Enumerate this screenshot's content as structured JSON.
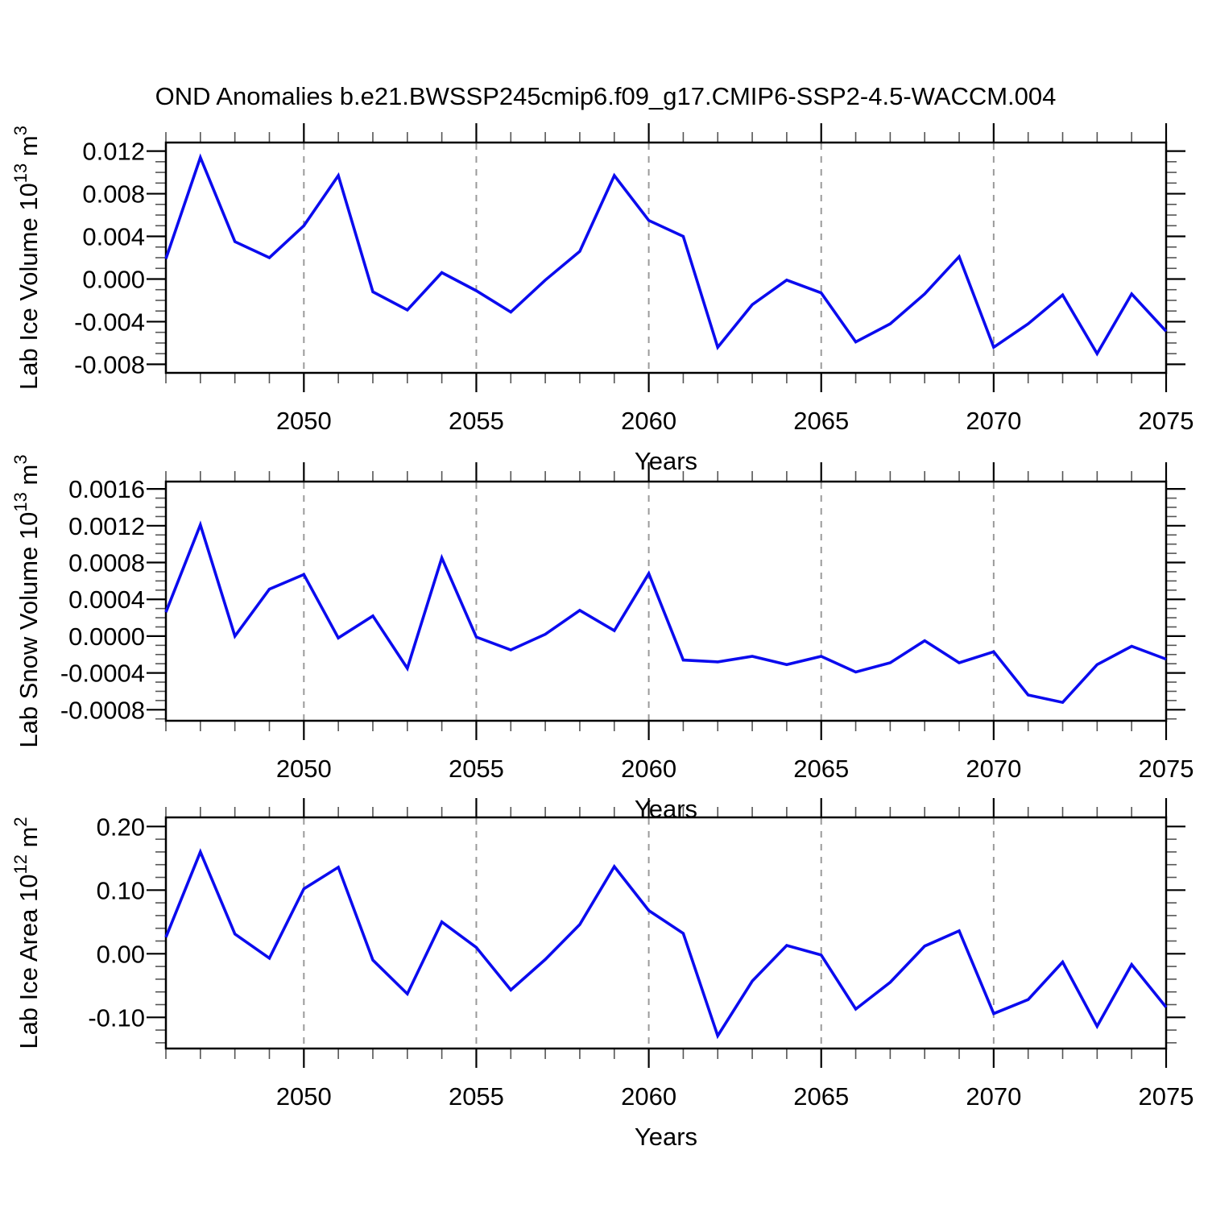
{
  "title": "OND Anomalies b.e21.BWSSP245cmip6.f09_g17.CMIP6-SSP2-4.5-WACCM.004",
  "line_color": "#0b0bee",
  "gridline_color": "#9a9a9a",
  "axis_color": "#000000",
  "chart_data": [
    {
      "type": "line",
      "name": "lab-ice-volume",
      "ylabel": "Lab Ice Volume 10^13 m^3",
      "ylabel_parts": [
        {
          "t": "Lab Ice Volume 10"
        },
        {
          "t": "13",
          "sup": true
        },
        {
          "t": " m"
        },
        {
          "t": "3",
          "sup": true
        }
      ],
      "xlabel": "Years",
      "x": [
        2046,
        2047,
        2048,
        2049,
        2050,
        2051,
        2052,
        2053,
        2054,
        2055,
        2056,
        2057,
        2058,
        2059,
        2060,
        2061,
        2062,
        2063,
        2064,
        2065,
        2066,
        2067,
        2068,
        2069,
        2070,
        2071,
        2072,
        2073,
        2074,
        2075
      ],
      "values": [
        0.0019,
        0.0114,
        0.0035,
        0.002,
        0.005,
        0.0097,
        -0.0012,
        -0.0029,
        0.0006,
        -0.0011,
        -0.0031,
        -0.0001,
        0.0026,
        0.0097,
        0.0055,
        0.004,
        -0.0064,
        -0.0024,
        -0.0001,
        -0.0013,
        -0.0059,
        -0.0042,
        -0.0014,
        0.0021,
        -0.0064,
        -0.0042,
        -0.0015,
        -0.007,
        -0.0014,
        -0.0049
      ],
      "xlim": [
        2046,
        2075
      ],
      "ylim": [
        -0.0088,
        0.0128
      ],
      "ytick_values": [
        0.012,
        0.008,
        0.004,
        0.0,
        -0.004,
        -0.008
      ],
      "ytick_labels": [
        "0.012",
        "0.008",
        "0.004",
        "0.000",
        "-0.004",
        "-0.008"
      ],
      "y_minor_step": 0.001,
      "xtick_values": [
        2050,
        2055,
        2060,
        2065,
        2070,
        2075
      ],
      "xtick_labels": [
        "2050",
        "2055",
        "2060",
        "2065",
        "2070",
        "2075"
      ],
      "x_minor_step": 1,
      "grid_x": [
        2050,
        2055,
        2060,
        2065,
        2070
      ],
      "grid_style": "vertical-dashed",
      "legend": "none"
    },
    {
      "type": "line",
      "name": "lab-snow-volume",
      "ylabel": "Lab Snow Volume 10^13 m^3",
      "ylabel_parts": [
        {
          "t": "Lab Snow Volume 10"
        },
        {
          "t": "13",
          "sup": true
        },
        {
          "t": " m"
        },
        {
          "t": "3",
          "sup": true
        }
      ],
      "xlabel": "Years",
      "x": [
        2046,
        2047,
        2048,
        2049,
        2050,
        2051,
        2052,
        2053,
        2054,
        2055,
        2056,
        2057,
        2058,
        2059,
        2060,
        2061,
        2062,
        2063,
        2064,
        2065,
        2066,
        2067,
        2068,
        2069,
        2070,
        2071,
        2072,
        2073,
        2074,
        2075
      ],
      "values": [
        0.00026,
        0.00121,
        0.0,
        0.00051,
        0.00067,
        -2e-05,
        0.00022,
        -0.00035,
        0.00085,
        -1e-05,
        -0.00015,
        2e-05,
        0.00028,
        6e-05,
        0.00068,
        -0.00026,
        -0.00028,
        -0.00022,
        -0.00031,
        -0.00022,
        -0.00039,
        -0.00029,
        -5e-05,
        -0.00029,
        -0.00017,
        -0.00064,
        -0.00072,
        -0.00031,
        -0.00011,
        -0.00025
      ],
      "xlim": [
        2046,
        2075
      ],
      "ylim": [
        -0.00092,
        0.00168
      ],
      "ytick_values": [
        0.0016,
        0.0012,
        0.0008,
        0.0004,
        0.0,
        -0.0004,
        -0.0008
      ],
      "ytick_labels": [
        "0.0016",
        "0.0012",
        "0.0008",
        "0.0004",
        "0.0000",
        "-0.0004",
        "-0.0008"
      ],
      "y_minor_step": 0.0001,
      "xtick_values": [
        2050,
        2055,
        2060,
        2065,
        2070,
        2075
      ],
      "xtick_labels": [
        "2050",
        "2055",
        "2060",
        "2065",
        "2070",
        "2075"
      ],
      "x_minor_step": 1,
      "grid_x": [
        2050,
        2055,
        2060,
        2065,
        2070
      ],
      "grid_style": "vertical-dashed",
      "legend": "none"
    },
    {
      "type": "line",
      "name": "lab-ice-area",
      "ylabel": "Lab Ice Area 10^12 m^2",
      "ylabel_parts": [
        {
          "t": "Lab Ice Area 10"
        },
        {
          "t": "12",
          "sup": true
        },
        {
          "t": " m"
        },
        {
          "t": "2",
          "sup": true
        }
      ],
      "xlabel": "Years",
      "x": [
        2046,
        2047,
        2048,
        2049,
        2050,
        2051,
        2052,
        2053,
        2054,
        2055,
        2056,
        2057,
        2058,
        2059,
        2060,
        2061,
        2062,
        2063,
        2064,
        2065,
        2066,
        2067,
        2068,
        2069,
        2070,
        2071,
        2072,
        2073,
        2074,
        2075
      ],
      "values": [
        0.026,
        0.16,
        0.031,
        -0.007,
        0.102,
        0.136,
        -0.01,
        -0.063,
        0.05,
        0.01,
        -0.057,
        -0.009,
        0.046,
        0.137,
        0.068,
        0.032,
        -0.129,
        -0.043,
        0.013,
        -0.002,
        -0.087,
        -0.045,
        0.012,
        0.036,
        -0.094,
        -0.072,
        -0.013,
        -0.114,
        -0.017,
        -0.084
      ],
      "xlim": [
        2046,
        2075
      ],
      "ylim": [
        -0.149,
        0.2143
      ],
      "ytick_values": [
        0.2,
        0.1,
        0.0,
        -0.1
      ],
      "ytick_labels": [
        "0.20",
        "0.10",
        "0.00",
        "-0.10"
      ],
      "y_minor_step": 0.02,
      "xtick_values": [
        2050,
        2055,
        2060,
        2065,
        2070,
        2075
      ],
      "xtick_labels": [
        "2050",
        "2055",
        "2060",
        "2065",
        "2070",
        "2075"
      ],
      "x_minor_step": 1,
      "grid_x": [
        2050,
        2055,
        2060,
        2065,
        2070
      ],
      "grid_style": "vertical-dashed",
      "legend": "none"
    }
  ]
}
